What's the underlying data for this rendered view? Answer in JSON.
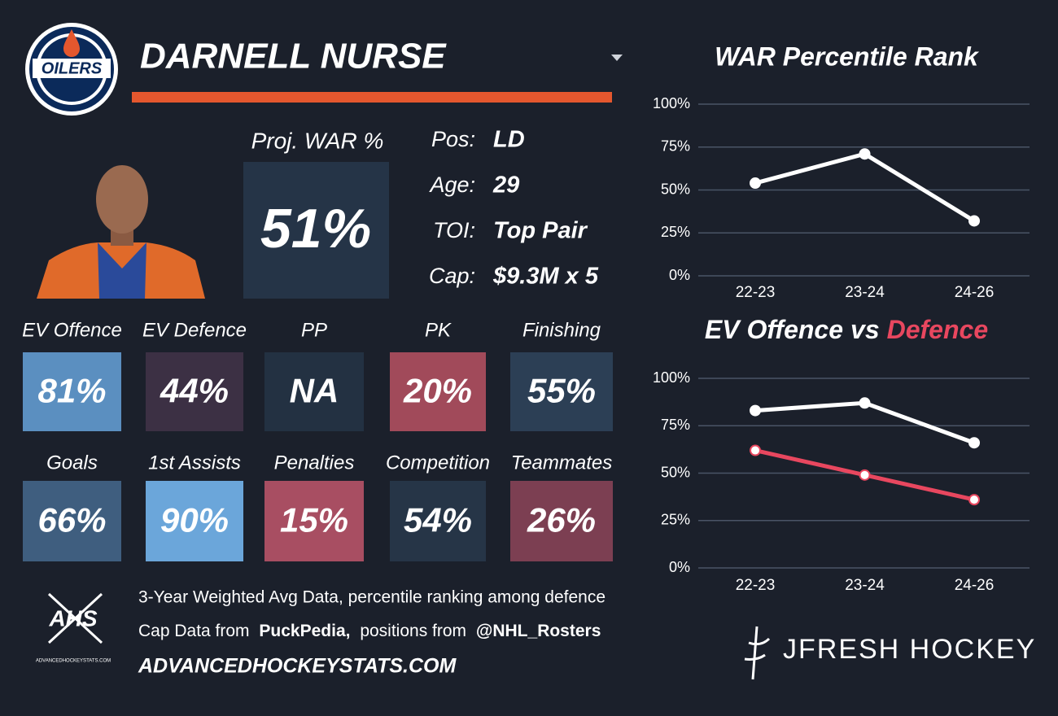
{
  "header": {
    "logo_text": "OILERS",
    "player": "DARNELL NURSE"
  },
  "summary": {
    "label": "Proj. WAR %",
    "value": "51%",
    "color": "#253447"
  },
  "details": [
    {
      "label": "Pos:",
      "value": "LD"
    },
    {
      "label": "Age:",
      "value": "29"
    },
    {
      "label": "TOI:",
      "value": "Top Pair"
    },
    {
      "label": "Cap:",
      "value": "$9.3M x 5"
    }
  ],
  "tiles": [
    {
      "label": "EV Offence",
      "value": "81%",
      "color": "#5b8fc0"
    },
    {
      "label": "EV Defence",
      "value": "44%",
      "color": "#3c3044"
    },
    {
      "label": "PP",
      "value": "NA",
      "color": "#233142"
    },
    {
      "label": "PK",
      "value": "20%",
      "color": "#a14a5a"
    },
    {
      "label": "Finishing",
      "value": "55%",
      "color": "#2c3f55"
    },
    {
      "label": "Goals",
      "value": "66%",
      "color": "#3f5e7f"
    },
    {
      "label": "1st Assists",
      "value": "90%",
      "color": "#6ba6da"
    },
    {
      "label": "Penalties",
      "value": "15%",
      "color": "#a84e62"
    },
    {
      "label": "Competition",
      "value": "54%",
      "color": "#263547"
    },
    {
      "label": "Teammates",
      "value": "26%",
      "color": "#7c3f52"
    }
  ],
  "footer": {
    "note": "3-Year Weighted Avg Data, percentile ranking among defence",
    "source_parts": [
      "Cap Data from",
      "PuckPedia,",
      "positions from",
      "@NHL_Rosters"
    ],
    "site": "ADVANCEDHOCKEYSTATS.COM",
    "ahs": "AHS",
    "ahs_site": "ADVANCEDHOCKEYSTATS.COM",
    "brand": "JFRESH HOCKEY"
  },
  "chart_data": [
    {
      "type": "line",
      "title": "WAR Percentile Rank",
      "categories": [
        "22-23",
        "23-24",
        "24-26"
      ],
      "series": [
        {
          "color": "#ffffff",
          "values": [
            54,
            71,
            32
          ]
        }
      ],
      "ylim": [
        0,
        100
      ],
      "yticks": [
        {
          "value": 0,
          "label": "0%"
        },
        {
          "value": 25,
          "label": "25%"
        },
        {
          "value": 50,
          "label": "50%"
        },
        {
          "value": 75,
          "label": "75%"
        },
        {
          "value": 100,
          "label": "100%"
        }
      ],
      "grid": true
    },
    {
      "type": "line",
      "title_joiner": "vs",
      "categories": [
        "22-23",
        "23-24",
        "24-26"
      ],
      "series": [
        {
          "name": "EV Offence",
          "color": "#ffffff",
          "values": [
            83,
            87,
            66
          ]
        },
        {
          "name": "Defence",
          "color": "#e8475f",
          "values": [
            62,
            49,
            36
          ]
        }
      ],
      "ylim": [
        0,
        100
      ],
      "yticks": [
        {
          "value": 0,
          "label": "0%"
        },
        {
          "value": 25,
          "label": "25%"
        },
        {
          "value": 50,
          "label": "50%"
        },
        {
          "value": 75,
          "label": "75%"
        },
        {
          "value": 100,
          "label": "100%"
        }
      ],
      "grid": true
    }
  ]
}
